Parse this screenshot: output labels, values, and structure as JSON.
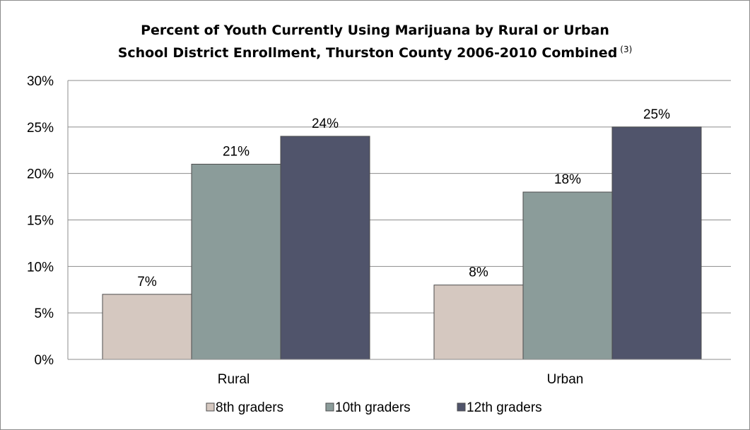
{
  "chart_data": {
    "type": "bar",
    "title_line1": "Percent of Youth Currently Using Marijuana by Rural or Urban",
    "title_line2": "School District Enrollment, Thurston County 2006-2010 Combined",
    "title_footnote": "(3)",
    "categories": [
      "Rural",
      "Urban"
    ],
    "series": [
      {
        "name": "8th graders",
        "values": [
          7,
          8
        ],
        "color": "#d5c8c0"
      },
      {
        "name": "10th graders",
        "values": [
          21,
          18
        ],
        "color": "#8b9c9a"
      },
      {
        "name": "12th graders",
        "values": [
          24,
          25
        ],
        "color": "#50546b"
      }
    ],
    "data_labels": [
      [
        "7%",
        "8%"
      ],
      [
        "21%",
        "18%"
      ],
      [
        "24%",
        "25%"
      ]
    ],
    "yticks": [
      "0%",
      "5%",
      "10%",
      "15%",
      "20%",
      "25%",
      "30%"
    ],
    "ylim": [
      0,
      30
    ],
    "grid": true,
    "legend_position": "bottom"
  }
}
